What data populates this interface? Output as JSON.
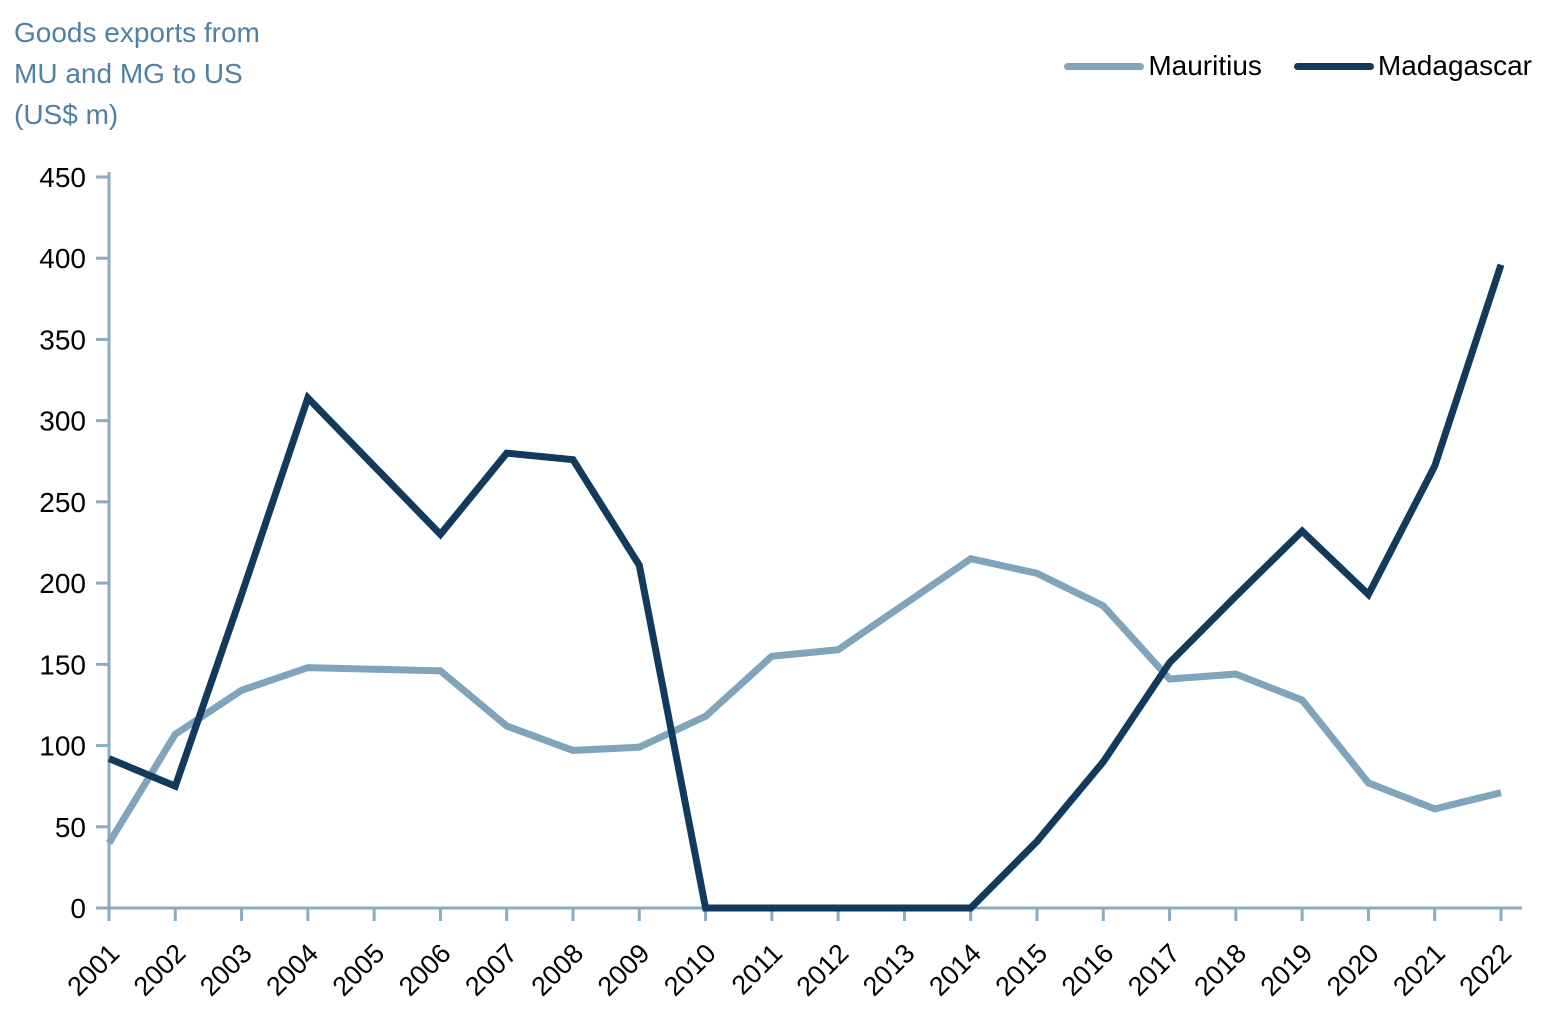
{
  "title": "Goods exports from\nMU and MG to US\n(US$ m)",
  "colors": {
    "title_text": "#4f81a1",
    "axis": "#8aabc0",
    "tick_label_text": "#000000",
    "mauritius_line": "#7fa4bc",
    "madagascar_line": "#123a5c"
  },
  "chart_data": {
    "type": "line",
    "title": "Goods exports from MU and MG to US (US$ m)",
    "xlabel": "",
    "ylabel": "US$ m",
    "x": [
      2001,
      2002,
      2003,
      2004,
      2005,
      2006,
      2007,
      2008,
      2009,
      2010,
      2011,
      2012,
      2013,
      2014,
      2015,
      2016,
      2017,
      2018,
      2019,
      2020,
      2021,
      2022
    ],
    "series": [
      {
        "name": "Mauritius",
        "values": [
          40,
          107,
          134,
          148,
          147,
          146,
          112,
          97,
          99,
          118,
          155,
          159,
          187,
          215,
          206,
          186,
          141,
          144,
          128,
          77,
          61,
          71
        ]
      },
      {
        "name": "Madagascar",
        "values": [
          92,
          75,
          193,
          314,
          272,
          230,
          280,
          276,
          211,
          0,
          0,
          0,
          0,
          0,
          41,
          90,
          151,
          192,
          232,
          193,
          272,
          396
        ]
      }
    ],
    "ylim": [
      0,
      450
    ],
    "ytick_step": 50,
    "grid": false,
    "legend_position": "top-right",
    "x_labels_rotation_deg": -45
  }
}
